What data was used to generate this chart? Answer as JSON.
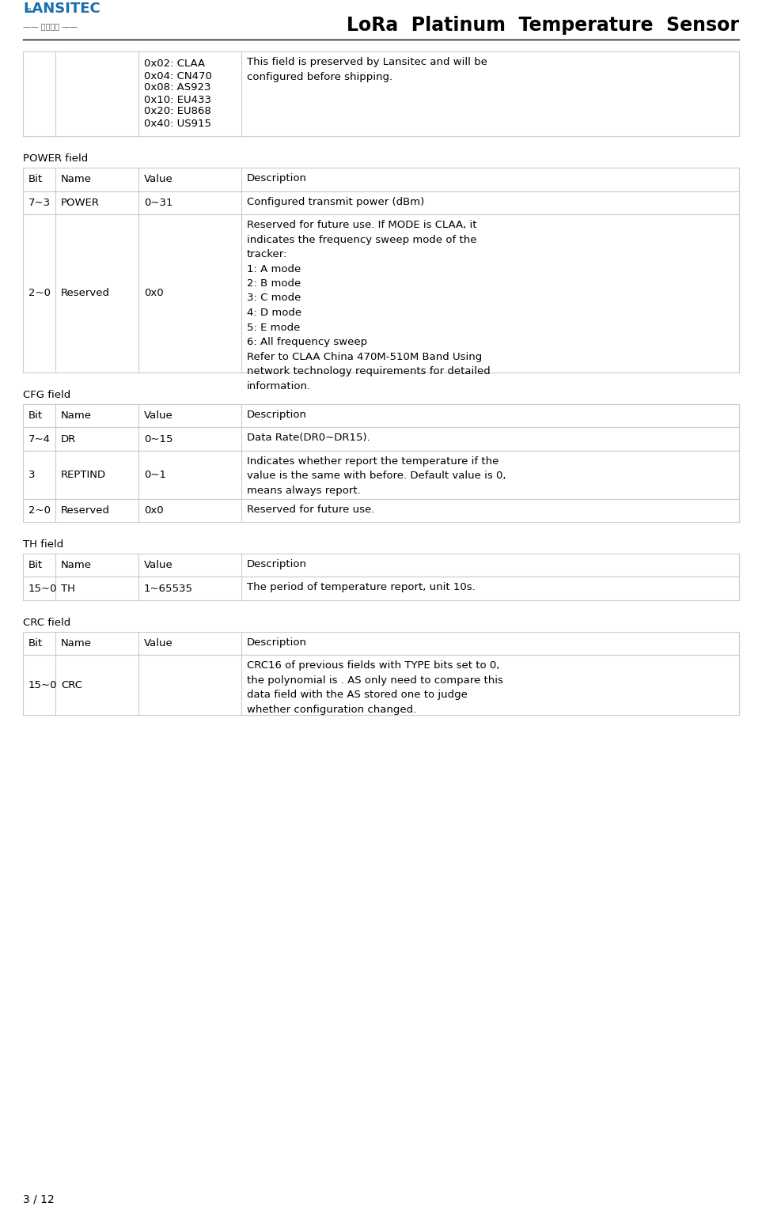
{
  "title": "LoRa  Platinum  Temperature  Sensor",
  "page_footer": "3 / 12",
  "bg_color": "#ffffff",
  "text_color": "#000000",
  "table_line_color": "#cccccc",
  "font_size_title": 17,
  "font_size_body": 9.5,
  "font_size_label": 9.5,
  "font_size_footer": 10,
  "sections": [
    {
      "label": "",
      "has_header": false,
      "rows": [
        {
          "bit": "",
          "name": "",
          "value": "0x02: CLAA\n0x04: CN470\n0x08: AS923\n0x10: EU433\n0x20: EU868\n0x40: US915",
          "desc": "This field is preserved by Lansitec and will be\nconfigured before shipping.",
          "is_header": false
        }
      ]
    },
    {
      "label": "POWER field",
      "has_header": true,
      "rows": [
        {
          "bit": "Bit",
          "name": "Name",
          "value": "Value",
          "desc": "Description",
          "is_header": true
        },
        {
          "bit": "7~3",
          "name": "POWER",
          "value": "0~31",
          "desc": "Configured transmit power (dBm)",
          "is_header": false
        },
        {
          "bit": "2~0",
          "name": "Reserved",
          "value": "0x0",
          "desc": "Reserved for future use. If MODE is CLAA, it\nindicates the frequency sweep mode of the\ntracker:\n1: A mode\n2: B mode\n3: C mode\n4: D mode\n5: E mode\n6: All frequency sweep\nRefer to CLAA China 470M-510M Band Using\nnetwork technology requirements for detailed\ninformation.",
          "is_header": false
        }
      ]
    },
    {
      "label": "CFG field",
      "has_header": true,
      "rows": [
        {
          "bit": "Bit",
          "name": "Name",
          "value": "Value",
          "desc": "Description",
          "is_header": true
        },
        {
          "bit": "7~4",
          "name": "DR",
          "value": "0~15",
          "desc": "Data Rate(DR0~DR15).",
          "is_header": false
        },
        {
          "bit": "3",
          "name": "REPTIND",
          "value": "0~1",
          "desc": "Indicates whether report the temperature if the\nvalue is the same with before. Default value is 0,\nmeans always report.",
          "is_header": false
        },
        {
          "bit": "2~0",
          "name": "Reserved",
          "value": "0x0",
          "desc": "Reserved for future use.",
          "is_header": false
        }
      ]
    },
    {
      "label": "TH field",
      "has_header": true,
      "rows": [
        {
          "bit": "Bit",
          "name": "Name",
          "value": "Value",
          "desc": "Description",
          "is_header": true
        },
        {
          "bit": "15~0",
          "name": "TH",
          "value": "1~65535",
          "desc": "The period of temperature report, unit 10s.",
          "is_header": false
        }
      ]
    },
    {
      "label": "CRC field",
      "has_header": true,
      "rows": [
        {
          "bit": "Bit",
          "name": "Name",
          "value": "Value",
          "desc": "Description",
          "is_header": true
        },
        {
          "bit": "15~0",
          "name": "CRC",
          "value": "",
          "desc": "CRC16 of previous fields with TYPE bits set to 0,\nthe polynomial is . AS only need to compare this\ndata field with the AS stored one to judge\nwhether configuration changed.",
          "is_header": false
        }
      ]
    }
  ]
}
